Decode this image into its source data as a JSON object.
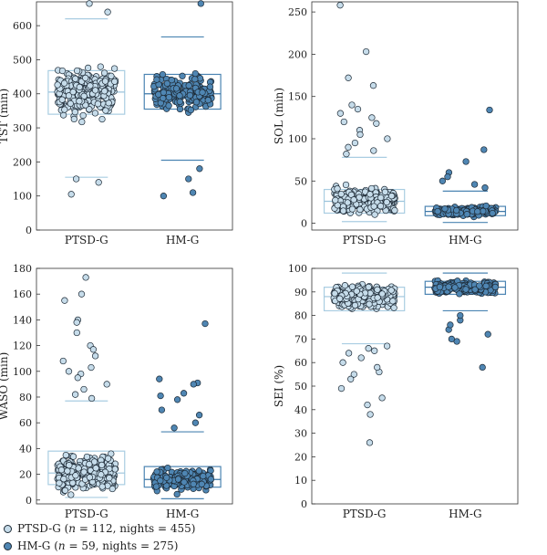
{
  "legend": [
    {
      "group": "PTSD-G",
      "n_label": "n",
      "rest": " = 112, nights = 455)",
      "color": "#c6dcea"
    },
    {
      "group": "HM-G",
      "n_label": "n",
      "rest": " = 59, nights = 275)",
      "color": "#4f86b3"
    }
  ],
  "chart_data": [
    {
      "type": "box-strip",
      "ylabel": "TST (min)",
      "categories": [
        "PTSD-G",
        "HM-G"
      ],
      "ylim": [
        0,
        670
      ],
      "yticks": [
        0,
        100,
        200,
        300,
        400,
        500,
        600
      ],
      "series": [
        {
          "name": "PTSD-G",
          "n_nights": 455,
          "whisker_low": 155,
          "q1": 340,
          "median": 405,
          "q3": 468,
          "whisker_high": 620,
          "outliers": [
            105,
            140,
            150,
            665,
            640
          ],
          "spread": [
            175,
            620
          ]
        },
        {
          "name": "HM-G",
          "n_nights": 275,
          "whisker_low": 205,
          "q1": 355,
          "median": 400,
          "q3": 457,
          "whisker_high": 567,
          "outliers": [
            100,
            110,
            150,
            180,
            665
          ],
          "spread": [
            205,
            567
          ]
        }
      ]
    },
    {
      "type": "box-strip",
      "ylabel": "SOL (min)",
      "categories": [
        "PTSD-G",
        "HM-G"
      ],
      "ylim": [
        -8,
        262
      ],
      "yticks": [
        0,
        50,
        100,
        150,
        200,
        250
      ],
      "series": [
        {
          "name": "PTSD-G",
          "n_nights": 455,
          "whisker_low": 2,
          "q1": 12,
          "median": 26,
          "q3": 40,
          "whisker_high": 78,
          "outliers": [
            258,
            203,
            172,
            163,
            140,
            135,
            130,
            125,
            120,
            118,
            110,
            105,
            100,
            95,
            90,
            86,
            82
          ],
          "spread": [
            0,
            78
          ]
        },
        {
          "name": "HM-G",
          "n_nights": 275,
          "whisker_low": 1,
          "q1": 9,
          "median": 14,
          "q3": 20,
          "whisker_high": 38,
          "outliers": [
            134,
            87,
            73,
            60,
            55,
            50,
            46,
            42
          ],
          "spread": [
            0,
            38
          ]
        }
      ]
    },
    {
      "type": "box-strip",
      "ylabel": "WASO (min)",
      "categories": [
        "PTSD-G",
        "HM-G"
      ],
      "ylim": [
        -3,
        180
      ],
      "yticks": [
        0,
        20,
        40,
        60,
        80,
        100,
        120,
        140,
        160,
        180
      ],
      "series": [
        {
          "name": "PTSD-G",
          "n_nights": 455,
          "whisker_low": 2,
          "q1": 12,
          "median": 21,
          "q3": 38,
          "whisker_high": 77,
          "outliers": [
            173,
            160,
            155,
            140,
            138,
            130,
            120,
            117,
            112,
            108,
            103,
            100,
            98,
            95,
            90,
            86,
            82,
            79
          ],
          "spread": [
            0,
            77
          ]
        },
        {
          "name": "HM-G",
          "n_nights": 275,
          "whisker_low": 1,
          "q1": 10,
          "median": 16,
          "q3": 26,
          "whisker_high": 53,
          "outliers": [
            137,
            94,
            91,
            90,
            83,
            81,
            78,
            70,
            66,
            60,
            56
          ],
          "spread": [
            0,
            53
          ]
        }
      ]
    },
    {
      "type": "box-strip",
      "ylabel": "SEI (%)",
      "categories": [
        "PTSD-G",
        "HM-G"
      ],
      "ylim": [
        0,
        100
      ],
      "yticks": [
        0,
        10,
        20,
        30,
        40,
        50,
        60,
        70,
        80,
        90,
        100
      ],
      "series": [
        {
          "name": "PTSD-G",
          "n_nights": 455,
          "whisker_low": 68,
          "q1": 82,
          "median": 88,
          "q3": 92,
          "whisker_high": 98,
          "outliers": [
            26,
            38,
            42,
            45,
            49,
            53,
            55,
            56,
            58,
            60,
            62,
            64,
            65,
            66,
            67
          ],
          "spread": [
            68,
            98
          ]
        },
        {
          "name": "HM-G",
          "n_nights": 275,
          "whisker_low": 82,
          "q1": 89,
          "median": 92,
          "q3": 94.5,
          "whisker_high": 98,
          "outliers": [
            58,
            69,
            70,
            72,
            74,
            76,
            78,
            80
          ],
          "spread": [
            82,
            98
          ]
        }
      ]
    }
  ]
}
